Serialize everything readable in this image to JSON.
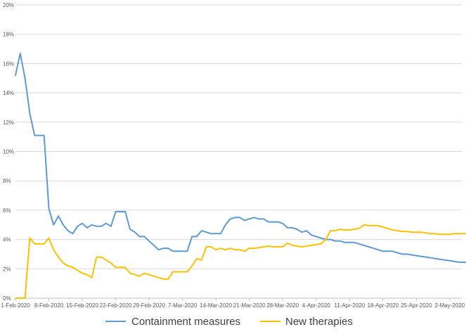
{
  "chart_data": {
    "type": "line",
    "title": "",
    "xlabel": "",
    "ylabel": "",
    "ylim": [
      0,
      20
    ],
    "y_ticks": [
      "0%",
      "2%",
      "4%",
      "6%",
      "8%",
      "10%",
      "12%",
      "14%",
      "16%",
      "18%",
      "20%"
    ],
    "x_tick_labels": [
      "1-Feb-2020",
      "8-Feb-2020",
      "15-Feb-2020",
      "22-Feb-2020",
      "29-Feb-2020",
      "7-Mar-2020",
      "14-Mar-2020",
      "21-Mar-2020",
      "28-Mar-2020",
      "4-Apr-2020",
      "11-Apr-2020",
      "18-Apr-2020",
      "25-Apr-2020",
      "2-May-2020"
    ],
    "x_range": [
      "1-Feb-2020",
      "9-May-2020"
    ],
    "grid": "horizontal",
    "legend_position": "bottom",
    "series": [
      {
        "name": "Containment measures",
        "color": "#5B9BD5",
        "values": [
          15.2,
          16.7,
          15.0,
          12.6,
          11.1,
          11.1,
          11.1,
          6.1,
          5.0,
          5.6,
          5.0,
          4.6,
          4.4,
          4.9,
          5.1,
          4.8,
          5.0,
          4.9,
          4.9,
          5.1,
          4.9,
          5.9,
          5.9,
          5.9,
          4.7,
          4.5,
          4.2,
          4.2,
          3.9,
          3.6,
          3.3,
          3.4,
          3.4,
          3.2,
          3.2,
          3.2,
          3.2,
          4.2,
          4.2,
          4.6,
          4.5,
          4.4,
          4.4,
          4.4,
          5.0,
          5.4,
          5.5,
          5.5,
          5.3,
          5.4,
          5.5,
          5.4,
          5.4,
          5.2,
          5.2,
          5.2,
          5.1,
          4.8,
          4.8,
          4.7,
          4.5,
          4.6,
          4.3,
          4.2,
          4.1,
          4.0,
          4.0,
          3.9,
          3.9,
          3.8,
          3.8,
          3.8,
          3.7,
          3.6,
          3.5,
          3.4,
          3.3,
          3.2,
          3.2,
          3.2,
          3.1,
          3.0,
          3.0,
          2.95,
          2.9,
          2.85,
          2.8,
          2.75,
          2.7,
          2.65,
          2.6,
          2.55,
          2.5,
          2.45,
          2.45,
          2.4,
          2.35,
          2.35,
          2.35
        ]
      },
      {
        "name": "New therapies",
        "color": "#FFC000",
        "values": [
          0.0,
          0.0,
          0.0,
          4.1,
          3.7,
          3.7,
          3.7,
          4.1,
          3.3,
          2.8,
          2.4,
          2.2,
          2.1,
          1.9,
          1.7,
          1.6,
          1.4,
          2.8,
          2.8,
          2.6,
          2.4,
          2.1,
          2.1,
          2.1,
          1.7,
          1.6,
          1.5,
          1.7,
          1.6,
          1.5,
          1.4,
          1.3,
          1.3,
          1.8,
          1.8,
          1.8,
          1.8,
          2.2,
          2.7,
          2.6,
          3.5,
          3.5,
          3.3,
          3.4,
          3.3,
          3.4,
          3.3,
          3.3,
          3.2,
          3.4,
          3.4,
          3.45,
          3.5,
          3.55,
          3.5,
          3.5,
          3.5,
          3.75,
          3.6,
          3.55,
          3.5,
          3.55,
          3.6,
          3.65,
          3.7,
          4.0,
          4.6,
          4.6,
          4.7,
          4.65,
          4.65,
          4.7,
          4.75,
          5.0,
          4.95,
          4.95,
          4.95,
          4.85,
          4.75,
          4.65,
          4.6,
          4.55,
          4.55,
          4.5,
          4.5,
          4.5,
          4.45,
          4.4,
          4.4,
          4.35,
          4.35,
          4.35,
          4.4,
          4.4,
          4.4,
          4.4,
          4.4,
          4.4,
          4.4
        ]
      }
    ]
  }
}
